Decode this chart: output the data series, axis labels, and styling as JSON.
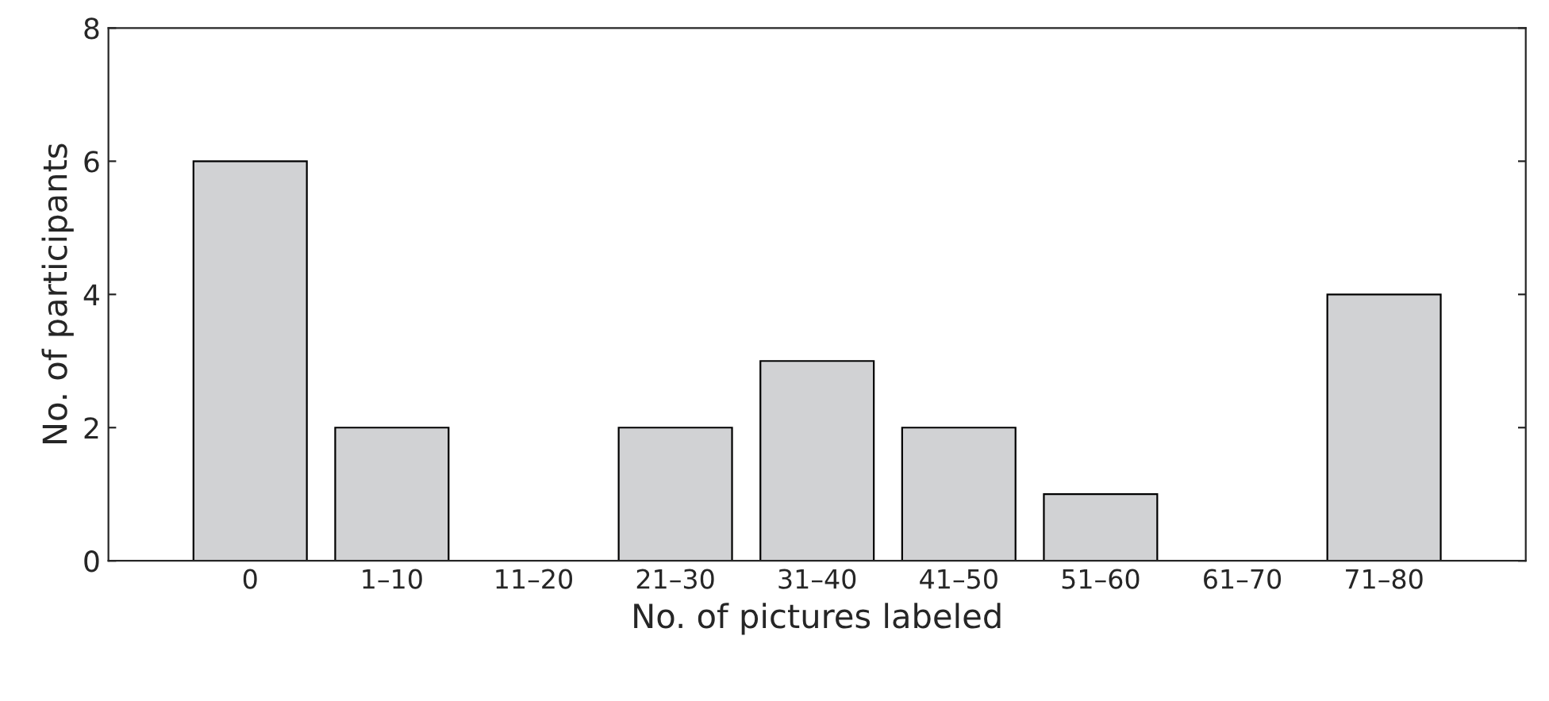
{
  "chart_data": {
    "type": "bar",
    "xlabel": "No. of pictures labeled",
    "ylabel": "No. of participants",
    "categories": [
      "0",
      "1–10",
      "11–20",
      "21–30",
      "31–40",
      "41–50",
      "51–60",
      "61–70",
      "71–80"
    ],
    "values": [
      6,
      2,
      0,
      2,
      3,
      2,
      1,
      0,
      4
    ],
    "color": "#d1d2d4",
    "ylim": [
      0,
      8
    ],
    "yticks": [
      0,
      2,
      4,
      6,
      8
    ],
    "grid": false
  }
}
